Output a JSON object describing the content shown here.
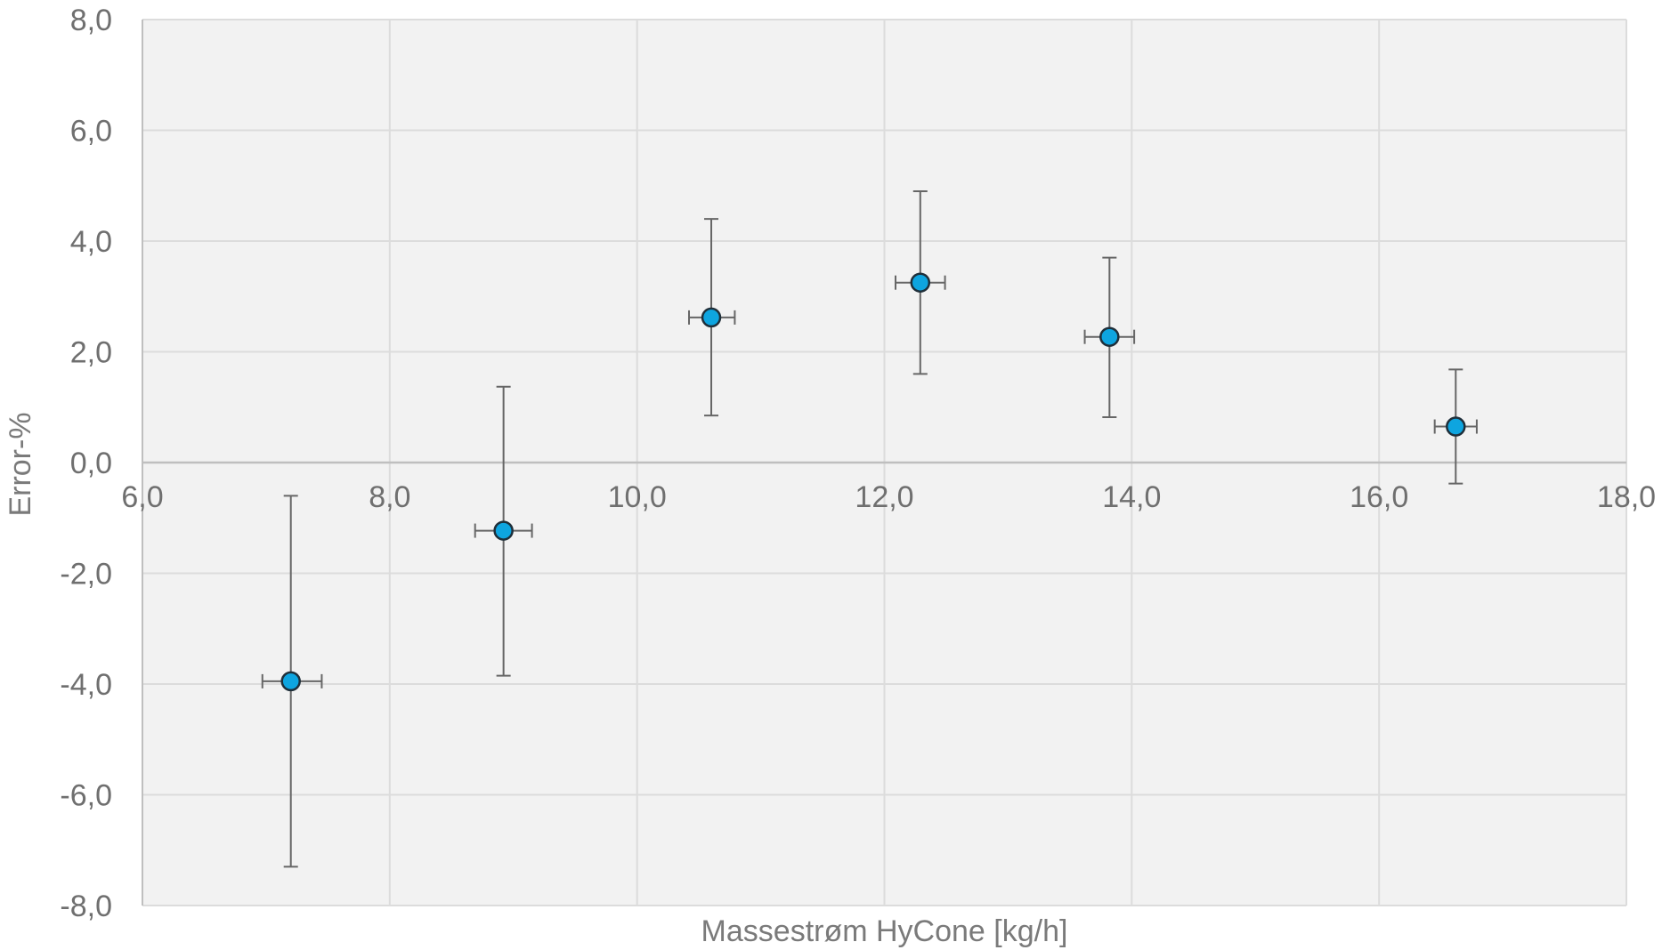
{
  "chart_data": {
    "type": "scatter",
    "title": "",
    "xlabel": "Massestrøm HyCone [kg/h]",
    "ylabel": "Error-%",
    "xlim": [
      6,
      18
    ],
    "ylim": [
      -8,
      8
    ],
    "x_ticks": [
      6,
      8,
      10,
      12,
      14,
      16,
      18
    ],
    "y_ticks": [
      -8,
      -6,
      -4,
      -2,
      0,
      2,
      4,
      6,
      8
    ],
    "x_tick_labels": [
      "6,0",
      "8,0",
      "10,0",
      "12,0",
      "14,0",
      "16,0",
      "18,0"
    ],
    "y_tick_labels": [
      "-8,0",
      "-6,0",
      "-4,0",
      "-2,0",
      "0,0",
      "2,0",
      "4,0",
      "6,0",
      "8,0"
    ],
    "grid": true,
    "x_axis_crosses_at": 0,
    "colors": {
      "plot_background": "#f2f2f2",
      "grid": "#dcdcdc",
      "marker_fill": "#0ea5e0",
      "marker_edge": "#1f2f3a",
      "error_bar": "#666666",
      "axis_line": "#bfbfbf"
    },
    "series": [
      {
        "points": [
          {
            "x": 7.2,
            "y": -3.95,
            "y_err_low": -7.3,
            "y_err_high": -0.6,
            "x_err_low": 6.97,
            "x_err_high": 7.45
          },
          {
            "x": 8.92,
            "y": -1.23,
            "y_err_low": -3.85,
            "y_err_high": 1.37,
            "x_err_low": 8.69,
            "x_err_high": 9.15
          },
          {
            "x": 10.6,
            "y": 2.62,
            "y_err_low": 0.85,
            "y_err_high": 4.4,
            "x_err_low": 10.42,
            "x_err_high": 10.79
          },
          {
            "x": 12.29,
            "y": 3.25,
            "y_err_low": 1.6,
            "y_err_high": 4.9,
            "x_err_low": 12.09,
            "x_err_high": 12.49
          },
          {
            "x": 13.82,
            "y": 2.27,
            "y_err_low": 0.82,
            "y_err_high": 3.7,
            "x_err_low": 13.62,
            "x_err_high": 14.02
          },
          {
            "x": 16.62,
            "y": 0.65,
            "y_err_low": -0.38,
            "y_err_high": 1.68,
            "x_err_low": 16.45,
            "x_err_high": 16.79
          }
        ]
      }
    ]
  }
}
